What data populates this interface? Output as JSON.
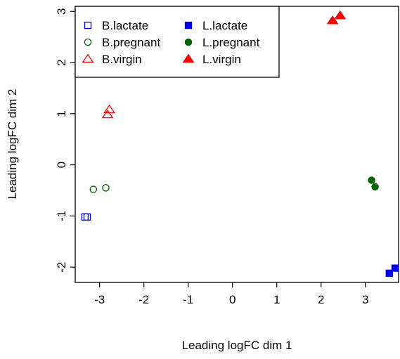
{
  "chart_data": {
    "type": "scatter",
    "xlabel": "Leading logFC dim 1",
    "ylabel": "Leading logFC dim 2",
    "xlim": [
      -3.55,
      3.75
    ],
    "ylim": [
      -2.3,
      3.1
    ],
    "xticks": [
      -3,
      -2,
      -1,
      0,
      1,
      2,
      3
    ],
    "yticks": [
      -2,
      -1,
      0,
      1,
      2,
      3
    ],
    "legend_position": "top-left",
    "series": [
      {
        "name": "B.lactate",
        "shape": "square",
        "filled": false,
        "color": "#0000ff",
        "points": [
          [
            -3.33,
            -1.02
          ],
          [
            -3.28,
            -1.02
          ]
        ]
      },
      {
        "name": "B.pregnant",
        "shape": "circle",
        "filled": false,
        "color": "#006400",
        "points": [
          [
            -3.14,
            -0.48
          ],
          [
            -2.86,
            -0.45
          ]
        ]
      },
      {
        "name": "B.virgin",
        "shape": "triangle",
        "filled": false,
        "color": "#ff0000",
        "points": [
          [
            -2.82,
            0.98
          ],
          [
            -2.78,
            1.08
          ]
        ]
      },
      {
        "name": "L.lactate",
        "shape": "square",
        "filled": true,
        "color": "#0000ff",
        "points": [
          [
            3.54,
            -2.12
          ],
          [
            3.67,
            -2.02
          ]
        ]
      },
      {
        "name": "L.pregnant",
        "shape": "circle",
        "filled": true,
        "color": "#006400",
        "points": [
          [
            3.14,
            -0.3
          ],
          [
            3.22,
            -0.43
          ]
        ]
      },
      {
        "name": "L.virgin",
        "shape": "triangle",
        "filled": true,
        "color": "#ff0000",
        "points": [
          [
            2.26,
            2.82
          ],
          [
            2.43,
            2.92
          ]
        ]
      }
    ]
  }
}
